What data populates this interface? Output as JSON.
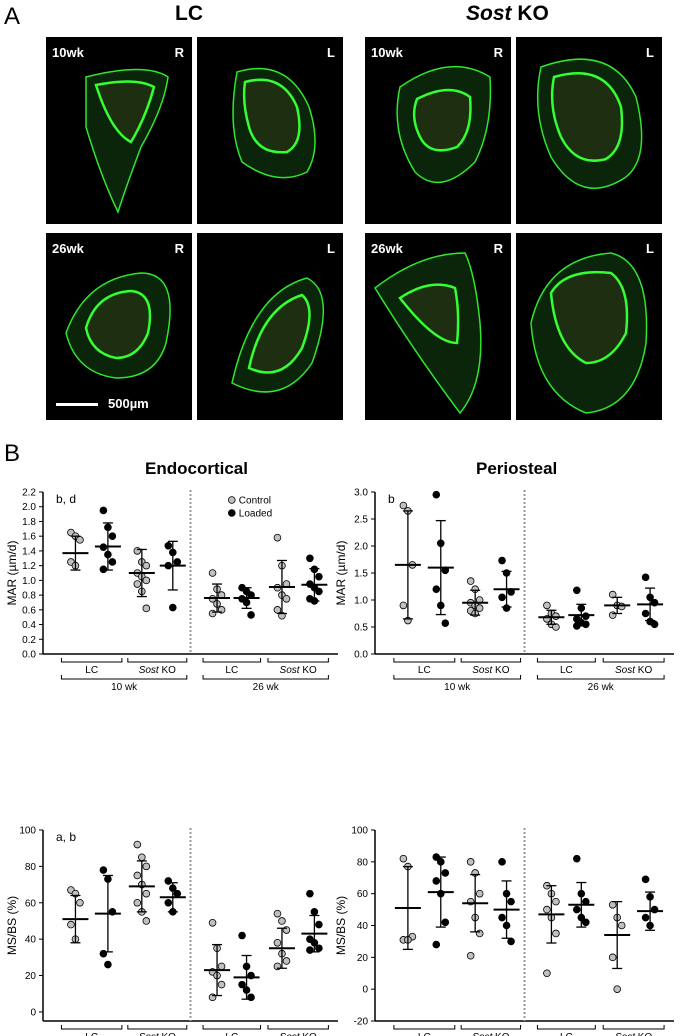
{
  "panelA": {
    "letter": "A",
    "col_left": "LC",
    "col_right_italic": "Sost",
    "col_right_rest": " KO",
    "scale_label": "500µm",
    "tiles": [
      {
        "age": "10wk",
        "side": "R"
      },
      {
        "age": "",
        "side": "L"
      },
      {
        "age": "10wk",
        "side": "R"
      },
      {
        "age": "",
        "side": "L"
      },
      {
        "age": "26wk",
        "side": "R"
      },
      {
        "age": "",
        "side": "L"
      },
      {
        "age": "26wk",
        "side": "R"
      },
      {
        "age": "",
        "side": "L"
      }
    ]
  },
  "panelB": {
    "letter": "B",
    "endo_title": "Endocortical",
    "peri_title": "Periosteal"
  },
  "colors": {
    "fluor": "#33ff33",
    "control_fill": "#c0c0c0",
    "loaded_fill": "#000000",
    "divider": "#999999"
  },
  "chart_data": [
    {
      "type": "scatter",
      "id": "endo_mar",
      "ylabel": "MAR (µm/d)",
      "annotation": "b, d",
      "ylim": [
        0,
        2.2
      ],
      "ticks": [
        "0.0",
        "0.2",
        "0.4",
        "0.6",
        "0.8",
        "1.0",
        "1.2",
        "1.4",
        "1.6",
        "1.8",
        "2.0",
        "2.2"
      ],
      "legend": {
        "placement": "top",
        "entries": [
          "Control",
          "Loaded"
        ]
      },
      "groups": [
        {
          "label": "LC",
          "age": "10 wk",
          "series": "Control",
          "mean": 1.37,
          "sd": 0.23,
          "values": [
            1.65,
            1.6,
            1.55,
            1.25,
            1.2
          ]
        },
        {
          "label": "LC",
          "age": "10 wk",
          "series": "Loaded",
          "mean": 1.46,
          "sd": 0.32,
          "values": [
            1.95,
            1.72,
            1.6,
            1.45,
            1.35,
            1.25,
            1.15
          ]
        },
        {
          "label": "Sost KO",
          "age": "10 wk",
          "series": "Control",
          "mean": 1.1,
          "sd": 0.32,
          "values": [
            1.4,
            1.25,
            1.2,
            1.1,
            1.05,
            1.0,
            0.95,
            0.85,
            0.62
          ]
        },
        {
          "label": "Sost KO",
          "age": "10 wk",
          "series": "Loaded",
          "mean": 1.2,
          "sd": 0.33,
          "values": [
            1.47,
            1.38,
            1.25,
            1.2,
            0.63
          ]
        },
        {
          "label": "LC",
          "age": "26 wk",
          "series": "Control",
          "mean": 0.76,
          "sd": 0.19,
          "values": [
            1.1,
            0.88,
            0.8,
            0.75,
            0.68,
            0.6,
            0.55
          ]
        },
        {
          "label": "LC",
          "age": "26 wk",
          "series": "Loaded",
          "mean": 0.76,
          "sd": 0.14,
          "values": [
            0.9,
            0.85,
            0.8,
            0.75,
            0.7,
            0.53
          ]
        },
        {
          "label": "Sost KO",
          "age": "26 wk",
          "series": "Control",
          "mean": 0.91,
          "sd": 0.36,
          "values": [
            1.58,
            1.2,
            0.95,
            0.9,
            0.8,
            0.75,
            0.6,
            0.52
          ]
        },
        {
          "label": "Sost KO",
          "age": "26 wk",
          "series": "Loaded",
          "mean": 0.94,
          "sd": 0.22,
          "values": [
            1.3,
            1.15,
            1.05,
            0.95,
            0.9,
            0.85,
            0.75,
            0.72
          ]
        }
      ]
    },
    {
      "type": "scatter",
      "id": "peri_mar",
      "ylabel": "MAR (µm/d)",
      "annotation": "b",
      "ylim": [
        0,
        3.0
      ],
      "ticks": [
        "0.0",
        "0.5",
        "1.0",
        "1.5",
        "2.0",
        "2.5",
        "3.0"
      ],
      "groups": [
        {
          "label": "LC",
          "age": "10 wk",
          "series": "Control",
          "mean": 1.65,
          "sd": 1.0,
          "values": [
            2.75,
            2.65,
            1.65,
            0.9,
            0.62
          ]
        },
        {
          "label": "LC",
          "age": "10 wk",
          "series": "Loaded",
          "mean": 1.6,
          "sd": 0.87,
          "values": [
            2.95,
            2.05,
            1.55,
            1.2,
            0.9,
            0.57
          ]
        },
        {
          "label": "Sost KO",
          "age": "10 wk",
          "series": "Control",
          "mean": 0.95,
          "sd": 0.23,
          "values": [
            1.35,
            1.2,
            1.0,
            0.95,
            0.9,
            0.85,
            0.8,
            0.75
          ]
        },
        {
          "label": "Sost KO",
          "age": "10 wk",
          "series": "Loaded",
          "mean": 1.2,
          "sd": 0.33,
          "values": [
            1.73,
            1.5,
            1.15,
            1.05,
            0.85
          ]
        },
        {
          "label": "LC",
          "age": "26 wk",
          "series": "Control",
          "mean": 0.68,
          "sd": 0.13,
          "values": [
            0.9,
            0.75,
            0.7,
            0.65,
            0.55,
            0.5
          ]
        },
        {
          "label": "LC",
          "age": "26 wk",
          "series": "Loaded",
          "mean": 0.72,
          "sd": 0.2,
          "values": [
            1.18,
            0.85,
            0.7,
            0.65,
            0.58,
            0.55,
            0.52
          ]
        },
        {
          "label": "Sost KO",
          "age": "26 wk",
          "series": "Control",
          "mean": 0.9,
          "sd": 0.15,
          "values": [
            1.1,
            0.9,
            0.88,
            0.72
          ]
        },
        {
          "label": "Sost KO",
          "age": "26 wk",
          "series": "Loaded",
          "mean": 0.92,
          "sd": 0.3,
          "values": [
            1.42,
            1.05,
            0.95,
            0.75,
            0.6,
            0.55
          ]
        }
      ]
    },
    {
      "type": "scatter",
      "id": "endo_msbs",
      "ylabel": "MS/BS (%)",
      "annotation": "a, b",
      "ylim": [
        -5,
        100
      ],
      "ticks": [
        "0",
        "20",
        "40",
        "60",
        "80",
        "100"
      ],
      "groups": [
        {
          "label": "LC",
          "age": "10 wk",
          "series": "Control",
          "mean": 51,
          "sd": 13,
          "values": [
            67,
            65,
            60,
            48,
            40
          ]
        },
        {
          "label": "LC",
          "age": "10 wk",
          "series": "Loaded",
          "mean": 54,
          "sd": 21,
          "values": [
            78,
            73,
            55,
            32,
            26
          ]
        },
        {
          "label": "Sost KO",
          "age": "10 wk",
          "series": "Control",
          "mean": 69,
          "sd": 14,
          "values": [
            92,
            85,
            80,
            75,
            70,
            65,
            60,
            55,
            50
          ]
        },
        {
          "label": "Sost KO",
          "age": "10 wk",
          "series": "Loaded",
          "mean": 63,
          "sd": 8,
          "values": [
            72,
            68,
            65,
            60,
            55
          ]
        },
        {
          "label": "LC",
          "age": "26 wk",
          "series": "Control",
          "mean": 23,
          "sd": 14,
          "values": [
            49,
            35,
            25,
            22,
            20,
            15,
            8
          ]
        },
        {
          "label": "LC",
          "age": "26 wk",
          "series": "Loaded",
          "mean": 19,
          "sd": 12,
          "values": [
            42,
            25,
            20,
            15,
            12,
            8
          ]
        },
        {
          "label": "Sost KO",
          "age": "26 wk",
          "series": "Control",
          "mean": 35,
          "sd": 11,
          "values": [
            54,
            50,
            45,
            38,
            32,
            28,
            25
          ]
        },
        {
          "label": "Sost KO",
          "age": "26 wk",
          "series": "Loaded",
          "mean": 43,
          "sd": 10,
          "values": [
            65,
            55,
            48,
            40,
            38,
            35,
            34
          ]
        }
      ]
    },
    {
      "type": "scatter",
      "id": "peri_msbs",
      "ylabel": "MS/BS (%)",
      "ylim": [
        -20,
        100
      ],
      "ticks": [
        "-20",
        "0",
        "20",
        "40",
        "60",
        "80",
        "100"
      ],
      "groups": [
        {
          "label": "LC",
          "age": "10 wk",
          "series": "Control",
          "mean": 51,
          "sd": 26,
          "values": [
            82,
            77,
            33,
            31,
            31
          ]
        },
        {
          "label": "LC",
          "age": "10 wk",
          "series": "Loaded",
          "mean": 61,
          "sd": 22,
          "values": [
            83,
            80,
            73,
            68,
            60,
            42,
            28
          ]
        },
        {
          "label": "Sost KO",
          "age": "10 wk",
          "series": "Control",
          "mean": 54,
          "sd": 18,
          "values": [
            80,
            73,
            60,
            55,
            45,
            35,
            21
          ]
        },
        {
          "label": "Sost KO",
          "age": "10 wk",
          "series": "Loaded",
          "mean": 50,
          "sd": 18,
          "values": [
            80,
            60,
            55,
            45,
            40,
            30
          ]
        },
        {
          "label": "LC",
          "age": "26 wk",
          "series": "Control",
          "mean": 47,
          "sd": 18,
          "values": [
            65,
            60,
            55,
            50,
            45,
            35,
            10
          ]
        },
        {
          "label": "LC",
          "age": "26 wk",
          "series": "Loaded",
          "mean": 53,
          "sd": 14,
          "values": [
            82,
            60,
            55,
            50,
            45,
            42
          ]
        },
        {
          "label": "Sost KO",
          "age": "26 wk",
          "series": "Control",
          "mean": 34,
          "sd": 21,
          "values": [
            53,
            45,
            40,
            20,
            0
          ]
        },
        {
          "label": "Sost KO",
          "age": "26 wk",
          "series": "Loaded",
          "mean": 49,
          "sd": 12,
          "values": [
            69,
            58,
            50,
            45,
            40
          ]
        }
      ]
    }
  ],
  "axis_groups": {
    "top_labels": [
      "LC",
      "Sost KO",
      "LC",
      "Sost KO"
    ],
    "age_labels": [
      "10 wk",
      "26 wk"
    ],
    "sost_italic": "Sost",
    "sost_rest": " KO"
  }
}
